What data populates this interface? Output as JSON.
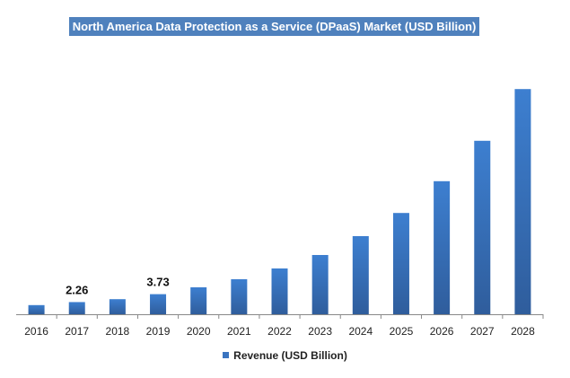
{
  "chart_data": {
    "type": "bar",
    "title": "North America Data Protection as a Service (DPaaS) Market (USD Billion)",
    "categories": [
      "2016",
      "2017",
      "2018",
      "2019",
      "2020",
      "2021",
      "2022",
      "2023",
      "2024",
      "2025",
      "2026",
      "2027",
      "2028"
    ],
    "series": [
      {
        "name": "Revenue (USD Billion)",
        "values": [
          1.7,
          2.26,
          2.8,
          3.73,
          5.0,
          6.5,
          8.5,
          11.0,
          14.5,
          18.8,
          24.7,
          32.2,
          41.8
        ],
        "data_labels": {
          "2017": "2.26",
          "2019": "3.73"
        }
      }
    ],
    "ylim": [
      0,
      45
    ],
    "grid": false,
    "y_axis_visible": false,
    "legend": "bottom",
    "colors": {
      "bar_top": "#3d7fd0",
      "bar_bottom": "#2f5d9c",
      "title_bg": "#4f81bd"
    }
  }
}
